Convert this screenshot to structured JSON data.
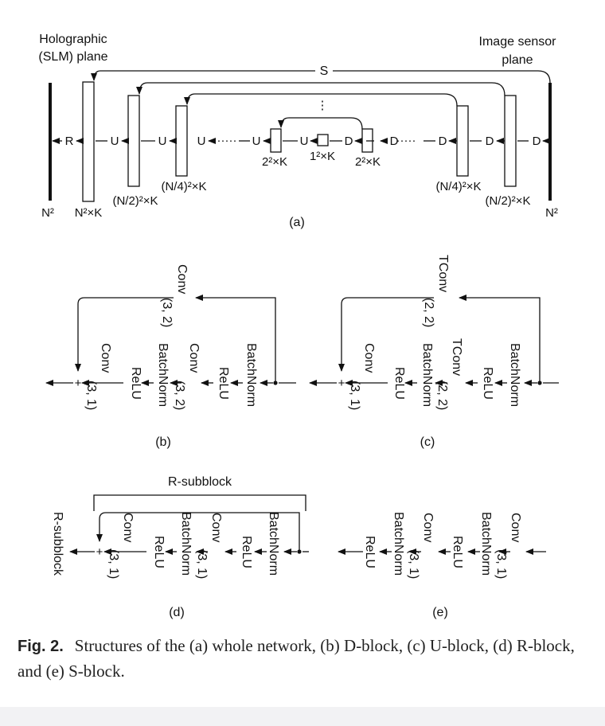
{
  "panel_a": {
    "slm_plane": [
      "Holographic",
      "(SLM) plane"
    ],
    "sensor_plane": [
      "Image sensor",
      "plane"
    ],
    "skip_label": "S",
    "dots_vertical": "⋮",
    "dots_h": "·····",
    "letters": [
      "R",
      "U",
      "U",
      "U",
      "U",
      "U",
      "D",
      "D",
      "D",
      "D",
      "D"
    ],
    "left_input_size": "N²",
    "right_input_size": "N²",
    "blocks": [
      "N²×K",
      "(N/2)²×K",
      "(N/4)²×K",
      "2²×K",
      "1²×K",
      "2²×K",
      "(N/4)²×K",
      "(N/2)²×K"
    ],
    "caption": "(a)"
  },
  "panel_b": {
    "skip_label": [
      "Conv",
      "(3, 2)"
    ],
    "plus": "+",
    "stack": [
      [
        "Conv",
        "(3, 1)"
      ],
      [
        "ReLU"
      ],
      [
        "BatchNorm"
      ],
      [
        "Conv",
        "(3, 2)"
      ],
      [
        "ReLU"
      ],
      [
        "BatchNorm"
      ]
    ],
    "caption": "(b)"
  },
  "panel_c": {
    "skip_label": [
      "TConv",
      "(2, 2)"
    ],
    "plus": "+",
    "stack": [
      [
        "Conv",
        "(3, 1)"
      ],
      [
        "ReLU"
      ],
      [
        "BatchNorm"
      ],
      [
        "TConv",
        "(2, 2)"
      ],
      [
        "ReLU"
      ],
      [
        "BatchNorm"
      ]
    ],
    "caption": "(c)"
  },
  "panel_d": {
    "bracket_label": "R-subblock",
    "side_label": "R-subblock",
    "plus": "+",
    "stack": [
      [
        "Conv",
        "(3, 1)"
      ],
      [
        "ReLU"
      ],
      [
        "BatchNorm"
      ],
      [
        "Conv",
        "(3, 1)"
      ],
      [
        "ReLU"
      ],
      [
        "BatchNorm"
      ]
    ],
    "caption": "(d)"
  },
  "panel_e": {
    "stack": [
      [
        "ReLU"
      ],
      [
        "BatchNorm"
      ],
      [
        "Conv",
        "(3, 1)"
      ],
      [
        "ReLU"
      ],
      [
        "BatchNorm"
      ],
      [
        "Conv",
        "(3, 1)"
      ]
    ],
    "caption": "(e)"
  },
  "caption": {
    "label": "Fig. 2.",
    "text": "Structures of the (a) whole network, (b) D-block, (c) U-block, (d) R-block, and (e) S-block."
  }
}
